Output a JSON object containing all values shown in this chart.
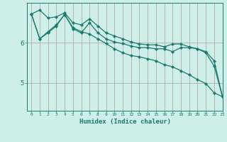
{
  "xlabel": "Humidex (Indice chaleur)",
  "background_color": "#ceeee8",
  "line_color": "#1a7a6e",
  "grid_color": "#b8a8a8",
  "xlim": [
    -0.5,
    23
  ],
  "ylim": [
    4.3,
    7.0
  ],
  "yticks": [
    5,
    6
  ],
  "xticks": [
    0,
    1,
    2,
    3,
    4,
    5,
    6,
    7,
    8,
    9,
    10,
    11,
    12,
    13,
    14,
    15,
    16,
    17,
    18,
    19,
    20,
    21,
    22,
    23
  ],
  "line1_x": [
    0,
    1,
    2,
    3,
    4,
    5,
    6,
    7,
    8,
    9,
    10,
    11,
    12,
    13,
    14,
    15,
    16,
    17,
    18,
    19,
    20,
    21,
    22,
    23
  ],
  "line1_y": [
    6.72,
    6.82,
    6.62,
    6.65,
    6.75,
    6.5,
    6.45,
    6.6,
    6.42,
    6.25,
    6.17,
    6.1,
    6.02,
    5.97,
    5.95,
    5.95,
    5.9,
    5.97,
    5.97,
    5.9,
    5.85,
    5.78,
    5.55,
    4.65
  ],
  "line2_x": [
    0,
    1,
    2,
    3,
    4,
    5,
    6,
    7,
    8,
    9,
    10,
    11,
    12,
    13,
    14,
    15,
    16,
    17,
    18,
    19,
    20,
    21,
    22,
    23
  ],
  "line2_y": [
    6.72,
    6.1,
    6.25,
    6.42,
    6.72,
    6.35,
    6.25,
    6.5,
    6.25,
    6.1,
    6.02,
    5.98,
    5.92,
    5.88,
    5.88,
    5.85,
    5.85,
    5.78,
    5.88,
    5.88,
    5.85,
    5.75,
    5.42,
    4.65
  ],
  "line3_x": [
    0,
    1,
    2,
    3,
    4,
    5,
    6,
    7,
    8,
    9,
    10,
    11,
    12,
    13,
    14,
    15,
    16,
    17,
    18,
    19,
    20,
    21,
    22,
    23
  ],
  "line3_y": [
    6.72,
    6.1,
    6.28,
    6.45,
    6.7,
    6.38,
    6.28,
    6.22,
    6.1,
    5.98,
    5.85,
    5.75,
    5.68,
    5.65,
    5.6,
    5.55,
    5.45,
    5.4,
    5.3,
    5.2,
    5.08,
    4.98,
    4.75,
    4.65
  ]
}
